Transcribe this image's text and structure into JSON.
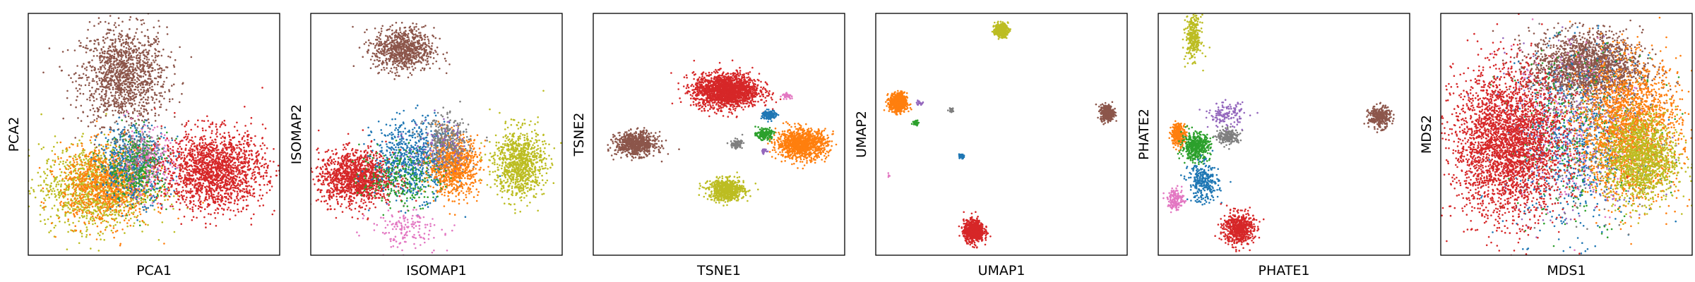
{
  "chart_data": [
    {
      "type": "scatter",
      "title": "",
      "xlabel": "PCA1",
      "ylabel": "PCA2",
      "grid": false,
      "xticks": [],
      "yticks": [],
      "xlim": [
        0,
        100
      ],
      "ylim": [
        0,
        100
      ],
      "clusters": [
        {
          "color": "#8c564b",
          "x": 38,
          "y": 74,
          "sx": 8.5,
          "sy": 10,
          "n": 1300
        },
        {
          "color": "#bcbd22",
          "x": 27,
          "y": 28,
          "sx": 11,
          "sy": 8.5,
          "n": 1200
        },
        {
          "color": "#ff7f0e",
          "x": 31,
          "y": 29,
          "sx": 9,
          "sy": 8,
          "n": 1000
        },
        {
          "color": "#1f77b4",
          "x": 42,
          "y": 38,
          "sx": 7,
          "sy": 8,
          "n": 500
        },
        {
          "color": "#e377c2",
          "x": 47,
          "y": 38,
          "sx": 6,
          "sy": 7,
          "n": 250
        },
        {
          "color": "#7f7f7f",
          "x": 45,
          "y": 42,
          "sx": 5,
          "sy": 6,
          "n": 150
        },
        {
          "color": "#2ca02c",
          "x": 44,
          "y": 36,
          "sx": 6,
          "sy": 7,
          "n": 250
        },
        {
          "color": "#d62728",
          "x": 74,
          "y": 35,
          "sx": 10,
          "sy": 8,
          "n": 1700
        }
      ]
    },
    {
      "type": "scatter",
      "title": "",
      "xlabel": "ISOMAP1",
      "ylabel": "ISOMAP2",
      "grid": false,
      "xticks": [],
      "yticks": [],
      "xlim": [
        0,
        100
      ],
      "ylim": [
        0,
        100
      ],
      "clusters": [
        {
          "color": "#8c564b",
          "x": 37,
          "y": 85,
          "sx": 6,
          "sy": 4.5,
          "n": 800
        },
        {
          "color": "#d62728",
          "x": 18,
          "y": 32,
          "sx": 7.5,
          "sy": 5.5,
          "n": 1300
        },
        {
          "color": "#1f77b4",
          "x": 41,
          "y": 40,
          "sx": 8,
          "sy": 8,
          "n": 700
        },
        {
          "color": "#ff7f0e",
          "x": 57,
          "y": 37,
          "sx": 5,
          "sy": 6,
          "n": 800
        },
        {
          "color": "#7f7f7f",
          "x": 54,
          "y": 47,
          "sx": 4.5,
          "sy": 5,
          "n": 300
        },
        {
          "color": "#bcbd22",
          "x": 83,
          "y": 38,
          "sx": 5,
          "sy": 7,
          "n": 900
        },
        {
          "color": "#e377c2",
          "x": 38,
          "y": 11,
          "sx": 7,
          "sy": 4,
          "n": 150
        },
        {
          "color": "#2ca02c",
          "x": 36,
          "y": 32,
          "sx": 8,
          "sy": 6,
          "n": 250
        },
        {
          "color": "#9467bd",
          "x": 50,
          "y": 45,
          "sx": 6,
          "sy": 6,
          "n": 100
        }
      ]
    },
    {
      "type": "scatter",
      "title": "",
      "xlabel": "TSNE1",
      "ylabel": "TSNE2",
      "grid": false,
      "xticks": [],
      "yticks": [],
      "xlim": [
        0,
        100
      ],
      "ylim": [
        0,
        100
      ],
      "clusters": [
        {
          "color": "#d62728",
          "x": 53,
          "y": 68,
          "sx": 6.5,
          "sy": 3.5,
          "n": 1800
        },
        {
          "color": "#8c564b",
          "x": 17,
          "y": 46,
          "sx": 4,
          "sy": 2.4,
          "n": 700
        },
        {
          "color": "#ff7f0e",
          "x": 83,
          "y": 46,
          "sx": 5,
          "sy": 3,
          "n": 1100
        },
        {
          "color": "#bcbd22",
          "x": 53,
          "y": 27,
          "sx": 3.5,
          "sy": 2.2,
          "n": 700
        },
        {
          "color": "#1f77b4",
          "x": 70,
          "y": 58,
          "sx": 1.4,
          "sy": 1,
          "n": 150
        },
        {
          "color": "#2ca02c",
          "x": 68,
          "y": 50,
          "sx": 1.5,
          "sy": 1,
          "n": 200
        },
        {
          "color": "#7f7f7f",
          "x": 57,
          "y": 46,
          "sx": 1.2,
          "sy": 0.9,
          "n": 90
        },
        {
          "color": "#e377c2",
          "x": 77,
          "y": 66,
          "sx": 0.9,
          "sy": 0.5,
          "n": 40
        },
        {
          "color": "#9467bd",
          "x": 68,
          "y": 43,
          "sx": 0.7,
          "sy": 0.6,
          "n": 30
        }
      ]
    },
    {
      "type": "scatter",
      "title": "",
      "xlabel": "UMAP1",
      "ylabel": "UMAP2",
      "grid": false,
      "xticks": [],
      "yticks": [],
      "xlim": [
        0,
        100
      ],
      "ylim": [
        0,
        100
      ],
      "clusters": [
        {
          "color": "#bcbd22",
          "x": 50,
          "y": 93,
          "sx": 1.3,
          "sy": 1.4,
          "n": 350
        },
        {
          "color": "#ff7f0e",
          "x": 9,
          "y": 63,
          "sx": 1.7,
          "sy": 2,
          "n": 600
        },
        {
          "color": "#8c564b",
          "x": 92,
          "y": 59,
          "sx": 1.3,
          "sy": 1.6,
          "n": 400
        },
        {
          "color": "#d62728",
          "x": 39,
          "y": 10,
          "sx": 2,
          "sy": 2.2,
          "n": 800
        },
        {
          "color": "#1f77b4",
          "x": 34,
          "y": 41,
          "sx": 0.5,
          "sy": 0.6,
          "n": 40
        },
        {
          "color": "#7f7f7f",
          "x": 30,
          "y": 60,
          "sx": 0.5,
          "sy": 0.4,
          "n": 30
        },
        {
          "color": "#2ca02c",
          "x": 16,
          "y": 55,
          "sx": 0.6,
          "sy": 0.6,
          "n": 40
        },
        {
          "color": "#9467bd",
          "x": 17,
          "y": 63,
          "sx": 0.6,
          "sy": 0.4,
          "n": 20
        },
        {
          "color": "#e377c2",
          "x": 5,
          "y": 33,
          "sx": 0.5,
          "sy": 0.5,
          "n": 5
        }
      ]
    },
    {
      "type": "scatter",
      "title": "",
      "xlabel": "PHATE1",
      "ylabel": "PHATE2",
      "grid": false,
      "xticks": [],
      "yticks": [],
      "xlim": [
        0,
        100
      ],
      "ylim": [
        0,
        100
      ],
      "clusters": [
        {
          "color": "#bcbd22",
          "x": 14,
          "y": 90,
          "sx": 1.5,
          "sy": 4.5,
          "n": 300
        },
        {
          "color": "#8c564b",
          "x": 88,
          "y": 57,
          "sx": 2.2,
          "sy": 2.2,
          "n": 300
        },
        {
          "color": "#ff7f0e",
          "x": 8,
          "y": 50,
          "sx": 1.4,
          "sy": 2.3,
          "n": 300
        },
        {
          "color": "#2ca02c",
          "x": 15,
          "y": 45,
          "sx": 2.8,
          "sy": 2.8,
          "n": 450
        },
        {
          "color": "#7f7f7f",
          "x": 28,
          "y": 49,
          "sx": 2.2,
          "sy": 1.5,
          "n": 200
        },
        {
          "color": "#9467bd",
          "x": 27,
          "y": 58,
          "sx": 3.5,
          "sy": 2.5,
          "n": 140
        },
        {
          "color": "#1f77b4",
          "x": 18,
          "y": 30,
          "sx": 3,
          "sy": 4,
          "n": 300
        },
        {
          "color": "#e377c2",
          "x": 7,
          "y": 23,
          "sx": 1.6,
          "sy": 2.2,
          "n": 150
        },
        {
          "color": "#d62728",
          "x": 32,
          "y": 11,
          "sx": 3,
          "sy": 3.2,
          "n": 600
        }
      ]
    },
    {
      "type": "scatter",
      "title": "",
      "xlabel": "MDS1",
      "ylabel": "MDS2",
      "grid": false,
      "xticks": [],
      "yticks": [],
      "xlim": [
        0,
        100
      ],
      "ylim": [
        0,
        100
      ],
      "clusters": [
        {
          "color": "#8c564b",
          "x": 58,
          "y": 78,
          "sx": 11,
          "sy": 7,
          "n": 1800
        },
        {
          "color": "#9467bd",
          "x": 55,
          "y": 50,
          "sx": 15,
          "sy": 18,
          "n": 400
        },
        {
          "color": "#1f77b4",
          "x": 52,
          "y": 45,
          "sx": 13,
          "sy": 18,
          "n": 700
        },
        {
          "color": "#2ca02c",
          "x": 55,
          "y": 50,
          "sx": 16,
          "sy": 17,
          "n": 350
        },
        {
          "color": "#e377c2",
          "x": 50,
          "y": 55,
          "sx": 16,
          "sy": 18,
          "n": 250
        },
        {
          "color": "#7f7f7f",
          "x": 60,
          "y": 50,
          "sx": 14,
          "sy": 16,
          "n": 200
        },
        {
          "color": "#ff7f0e",
          "x": 75,
          "y": 52,
          "sx": 10,
          "sy": 14,
          "n": 2000
        },
        {
          "color": "#bcbd22",
          "x": 80,
          "y": 40,
          "sx": 7,
          "sy": 9,
          "n": 1200
        },
        {
          "color": "#d62728",
          "x": 27,
          "y": 46,
          "sx": 11,
          "sy": 15,
          "n": 3000
        }
      ]
    }
  ]
}
